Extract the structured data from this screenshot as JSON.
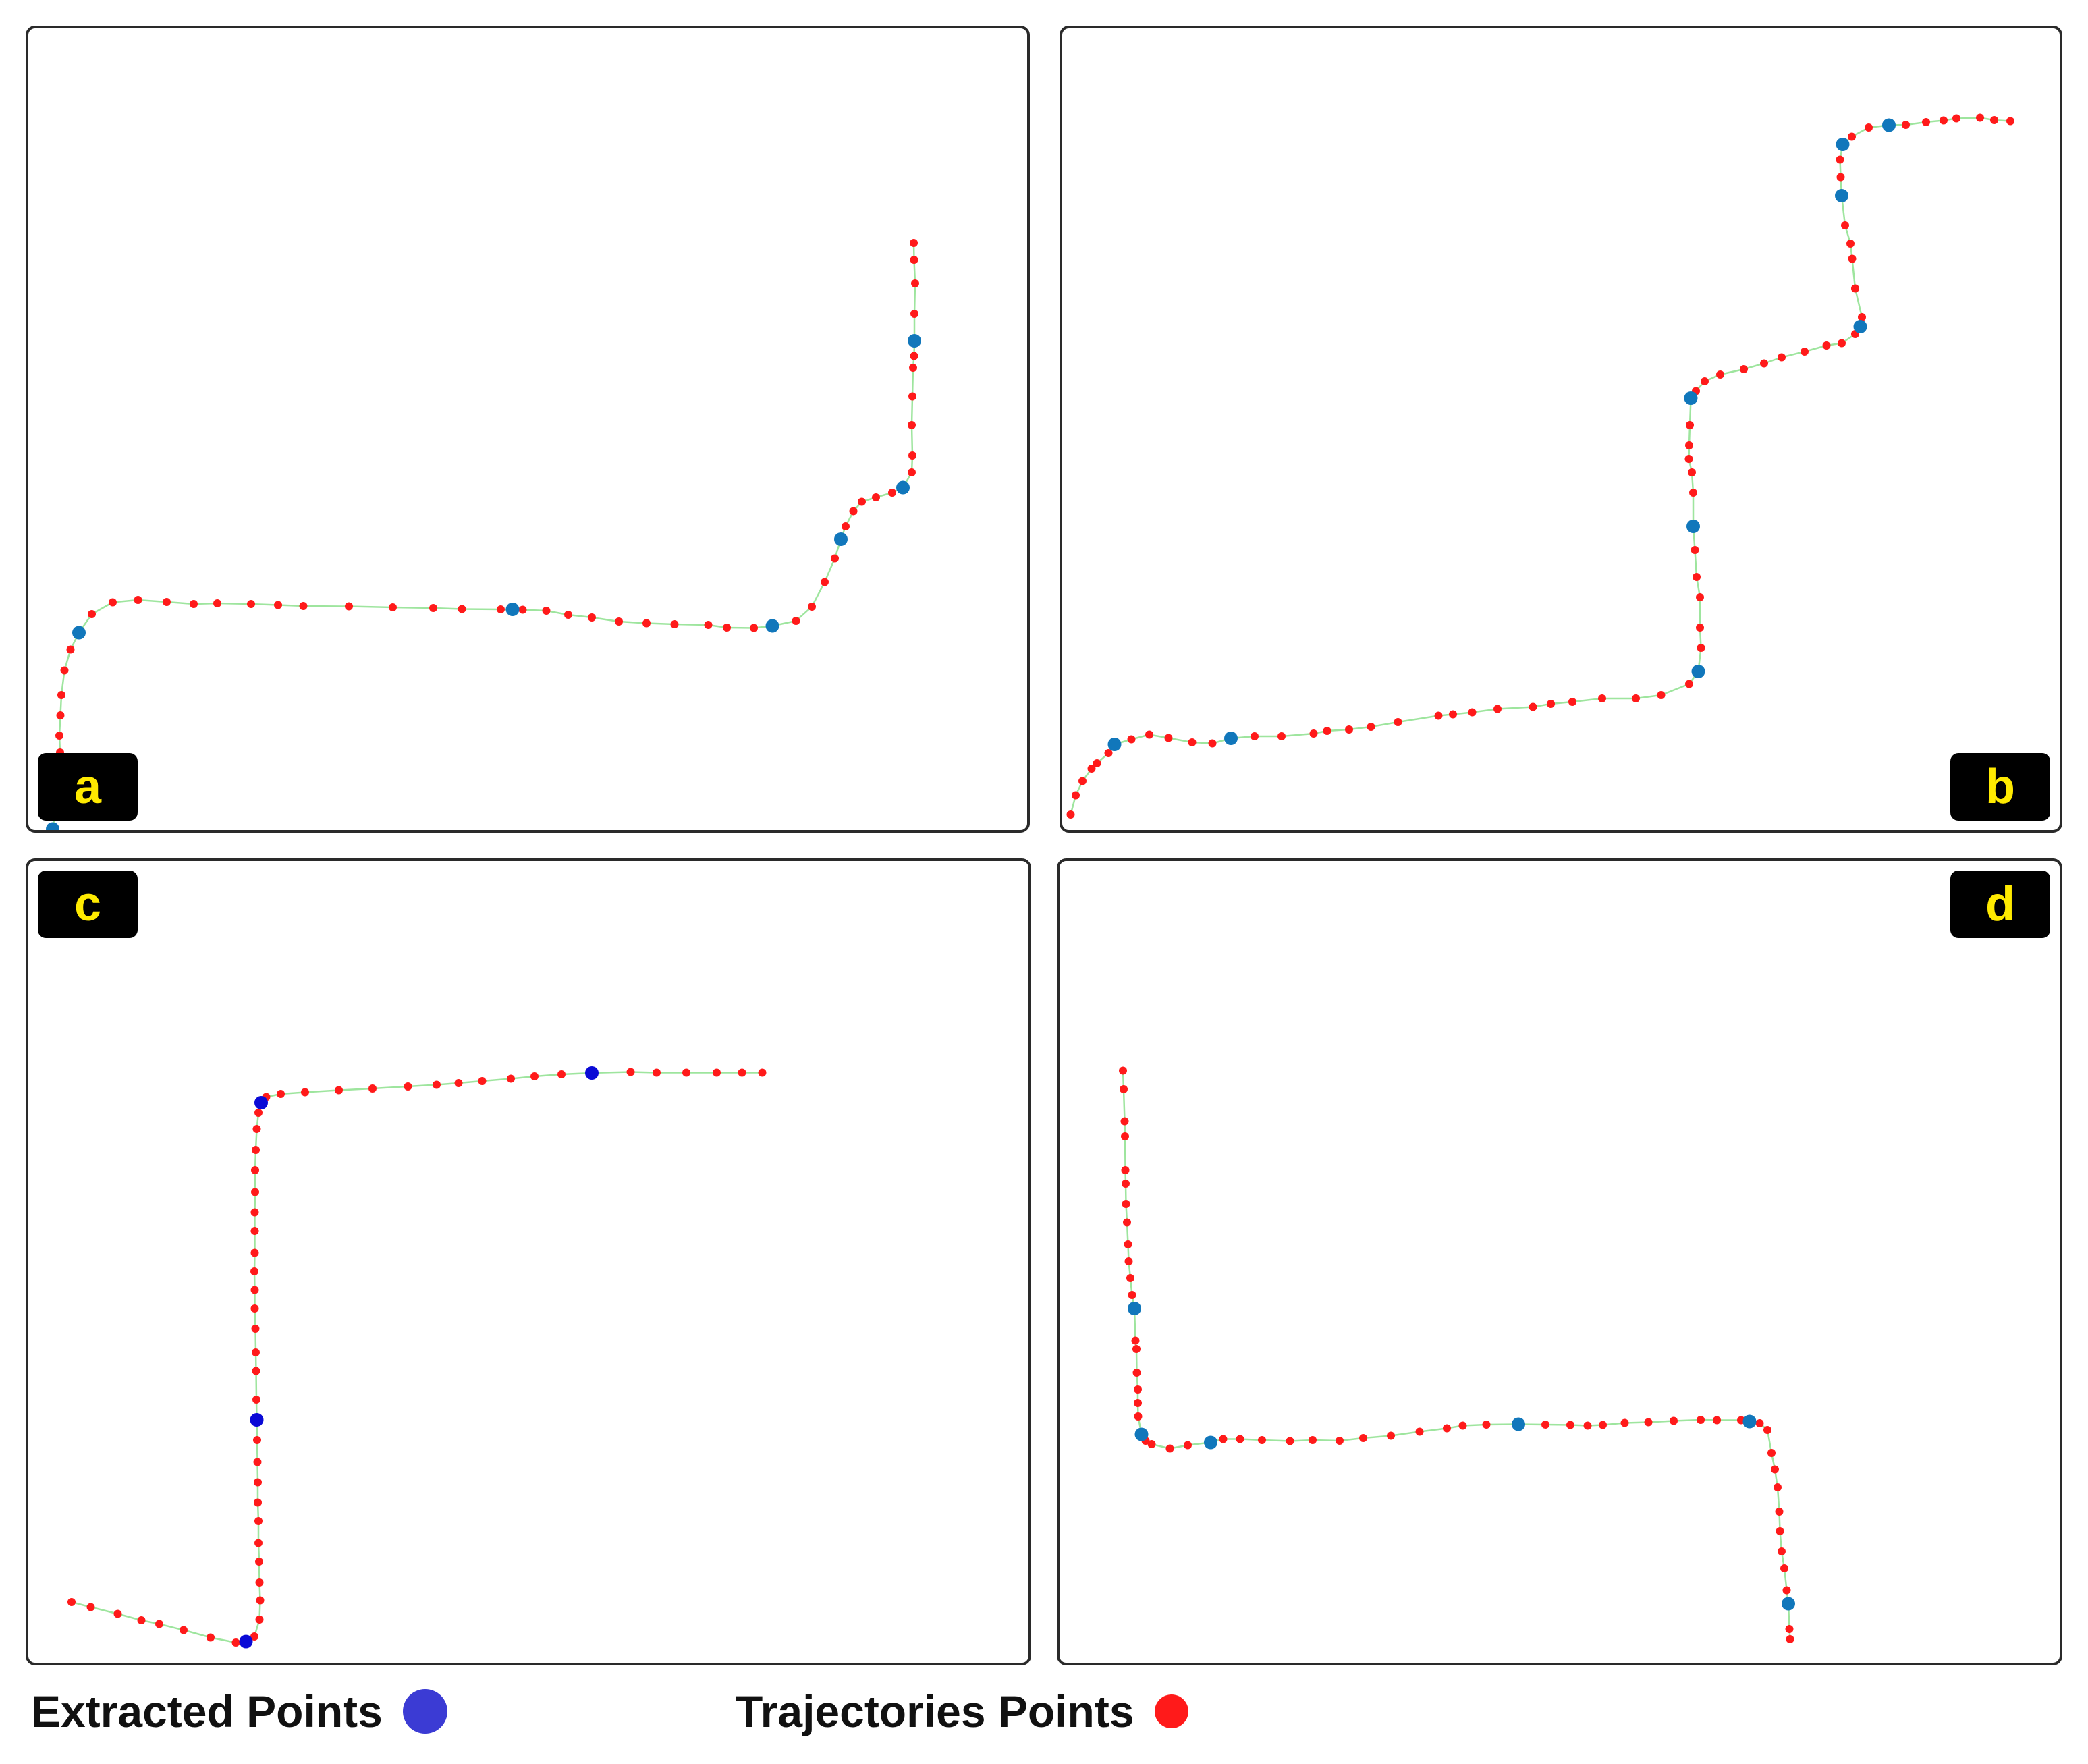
{
  "panels": [
    {
      "label": "a",
      "trajectory_points": [
        [
          0.066,
          -0.006
        ],
        [
          0.072,
          0.003
        ],
        [
          0.08,
          0.052
        ],
        [
          0.082,
          0.1
        ],
        [
          0.086,
          0.165
        ],
        [
          0.094,
          0.23
        ],
        [
          0.092,
          0.28
        ],
        [
          0.095,
          0.34
        ],
        [
          0.098,
          0.4
        ],
        [
          0.107,
          0.473
        ],
        [
          0.125,
          0.535
        ],
        [
          0.15,
          0.585
        ],
        [
          0.188,
          0.64
        ],
        [
          0.25,
          0.675
        ],
        [
          0.325,
          0.682
        ],
        [
          0.41,
          0.676
        ],
        [
          0.49,
          0.67
        ],
        [
          0.56,
          0.672
        ],
        [
          0.66,
          0.67
        ],
        [
          0.74,
          0.667
        ],
        [
          0.815,
          0.664
        ],
        [
          0.95,
          0.663
        ],
        [
          1.08,
          0.66
        ],
        [
          1.2,
          0.658
        ],
        [
          1.285,
          0.655
        ],
        [
          1.4,
          0.654
        ],
        [
          1.465,
          0.653
        ],
        [
          1.535,
          0.65
        ],
        [
          1.6,
          0.638
        ],
        [
          1.67,
          0.63
        ],
        [
          1.75,
          0.618
        ],
        [
          1.832,
          0.613
        ],
        [
          1.915,
          0.61
        ],
        [
          2.015,
          0.608
        ],
        [
          2.07,
          0.6
        ],
        [
          2.15,
          0.599
        ],
        [
          2.205,
          0.605
        ],
        [
          2.275,
          0.62
        ],
        [
          2.322,
          0.662
        ],
        [
          2.36,
          0.735
        ],
        [
          2.39,
          0.805
        ],
        [
          2.408,
          0.862
        ],
        [
          2.422,
          0.9
        ],
        [
          2.445,
          0.945
        ],
        [
          2.47,
          0.973
        ],
        [
          2.512,
          0.986
        ],
        [
          2.56,
          1.0
        ],
        [
          2.592,
          1.015
        ],
        [
          2.618,
          1.06
        ],
        [
          2.62,
          1.11
        ],
        [
          2.618,
          1.2
        ],
        [
          2.62,
          1.285
        ],
        [
          2.622,
          1.37
        ],
        [
          2.625,
          1.405
        ],
        [
          2.626,
          1.45
        ],
        [
          2.626,
          1.53
        ],
        [
          2.628,
          1.62
        ],
        [
          2.625,
          1.69
        ],
        [
          2.624,
          1.74
        ]
      ],
      "extracted_points": [
        [
          0.072,
          0.003
        ],
        [
          0.15,
          0.585
        ],
        [
          1.435,
          0.654
        ],
        [
          2.205,
          0.605
        ],
        [
          2.408,
          0.862
        ],
        [
          2.592,
          1.015
        ],
        [
          2.626,
          1.45
        ]
      ]
    },
    {
      "label": "b",
      "trajectory_points": [
        [
          0.025,
          0.046
        ],
        [
          0.04,
          0.103
        ],
        [
          0.06,
          0.145
        ],
        [
          0.087,
          0.182
        ],
        [
          0.103,
          0.198
        ],
        [
          0.137,
          0.228
        ],
        [
          0.155,
          0.254
        ],
        [
          0.205,
          0.269
        ],
        [
          0.258,
          0.283
        ],
        [
          0.315,
          0.273
        ],
        [
          0.385,
          0.26
        ],
        [
          0.445,
          0.257
        ],
        [
          0.5,
          0.272
        ],
        [
          0.57,
          0.278
        ],
        [
          0.65,
          0.278
        ],
        [
          0.745,
          0.286
        ],
        [
          0.785,
          0.294
        ],
        [
          0.85,
          0.298
        ],
        [
          0.915,
          0.306
        ],
        [
          0.995,
          0.32
        ],
        [
          1.115,
          0.339
        ],
        [
          1.158,
          0.343
        ],
        [
          1.215,
          0.349
        ],
        [
          1.29,
          0.359
        ],
        [
          1.395,
          0.365
        ],
        [
          1.448,
          0.374
        ],
        [
          1.512,
          0.38
        ],
        [
          1.6,
          0.39
        ],
        [
          1.7,
          0.39
        ],
        [
          1.775,
          0.4
        ],
        [
          1.858,
          0.433
        ],
        [
          1.885,
          0.47
        ],
        [
          1.893,
          0.54
        ],
        [
          1.89,
          0.6
        ],
        [
          1.89,
          0.69
        ],
        [
          1.88,
          0.75
        ],
        [
          1.875,
          0.83
        ],
        [
          1.87,
          0.9
        ],
        [
          1.87,
          1.0
        ],
        [
          1.866,
          1.06
        ],
        [
          1.857,
          1.1
        ],
        [
          1.858,
          1.14
        ],
        [
          1.86,
          1.2
        ],
        [
          1.863,
          1.28
        ],
        [
          1.878,
          1.301
        ],
        [
          1.904,
          1.33
        ],
        [
          1.95,
          1.35
        ],
        [
          2.02,
          1.366
        ],
        [
          2.08,
          1.383
        ],
        [
          2.132,
          1.401
        ],
        [
          2.2,
          1.418
        ],
        [
          2.265,
          1.436
        ],
        [
          2.31,
          1.443
        ],
        [
          2.35,
          1.47
        ],
        [
          2.365,
          1.492
        ],
        [
          2.37,
          1.52
        ],
        [
          2.35,
          1.605
        ],
        [
          2.341,
          1.693
        ],
        [
          2.336,
          1.738
        ],
        [
          2.32,
          1.792
        ],
        [
          2.31,
          1.88
        ],
        [
          2.307,
          1.935
        ],
        [
          2.305,
          1.987
        ],
        [
          2.313,
          2.032
        ],
        [
          2.34,
          2.055
        ],
        [
          2.39,
          2.082
        ],
        [
          2.45,
          2.089
        ],
        [
          2.5,
          2.09
        ],
        [
          2.56,
          2.098
        ],
        [
          2.612,
          2.103
        ],
        [
          2.65,
          2.109
        ],
        [
          2.72,
          2.111
        ],
        [
          2.762,
          2.104
        ],
        [
          2.81,
          2.101
        ]
      ],
      "extracted_points": [
        [
          0.155,
          0.254
        ],
        [
          0.5,
          0.272
        ],
        [
          1.885,
          0.47
        ],
        [
          1.87,
          0.9
        ],
        [
          1.863,
          1.28
        ],
        [
          2.365,
          1.492
        ],
        [
          2.31,
          1.88
        ],
        [
          2.313,
          2.032
        ],
        [
          2.45,
          2.089
        ]
      ]
    },
    {
      "label": "c",
      "trajectory_points": [
        [
          0.128,
          0.18
        ],
        [
          0.185,
          0.165
        ],
        [
          0.265,
          0.145
        ],
        [
          0.335,
          0.126
        ],
        [
          0.388,
          0.115
        ],
        [
          0.46,
          0.097
        ],
        [
          0.54,
          0.075
        ],
        [
          0.615,
          0.06
        ],
        [
          0.645,
          0.063
        ],
        [
          0.67,
          0.078
        ],
        [
          0.685,
          0.128
        ],
        [
          0.687,
          0.185
        ],
        [
          0.685,
          0.238
        ],
        [
          0.684,
          0.3
        ],
        [
          0.682,
          0.355
        ],
        [
          0.682,
          0.42
        ],
        [
          0.68,
          0.475
        ],
        [
          0.68,
          0.535
        ],
        [
          0.679,
          0.595
        ],
        [
          0.678,
          0.66
        ],
        [
          0.677,
          0.72
        ],
        [
          0.676,
          0.78
        ],
        [
          0.675,
          0.865
        ],
        [
          0.674,
          0.92
        ],
        [
          0.673,
          0.99
        ],
        [
          0.671,
          1.05
        ],
        [
          0.671,
          1.105
        ],
        [
          0.67,
          1.16
        ],
        [
          0.671,
          1.215
        ],
        [
          0.671,
          1.28
        ],
        [
          0.671,
          1.335
        ],
        [
          0.672,
          1.395
        ],
        [
          0.672,
          1.46
        ],
        [
          0.674,
          1.52
        ],
        [
          0.677,
          1.582
        ],
        [
          0.682,
          1.63
        ],
        [
          0.69,
          1.66
        ],
        [
          0.705,
          1.677
        ],
        [
          0.748,
          1.686
        ],
        [
          0.82,
          1.691
        ],
        [
          0.92,
          1.697
        ],
        [
          1.02,
          1.702
        ],
        [
          1.125,
          1.708
        ],
        [
          1.21,
          1.713
        ],
        [
          1.275,
          1.718
        ],
        [
          1.345,
          1.724
        ],
        [
          1.43,
          1.731
        ],
        [
          1.5,
          1.738
        ],
        [
          1.58,
          1.744
        ],
        [
          1.67,
          1.748
        ],
        [
          1.785,
          1.751
        ],
        [
          1.862,
          1.749
        ],
        [
          1.95,
          1.749
        ],
        [
          2.04,
          1.749
        ],
        [
          2.115,
          1.749
        ],
        [
          2.175,
          1.749
        ]
      ],
      "extracted_points": [
        [
          0.645,
          0.063
        ],
        [
          0.677,
          0.72
        ],
        [
          0.69,
          1.66
        ],
        [
          1.67,
          1.748
        ]
      ]
    },
    {
      "label": "d",
      "trajectory_points": [
        [
          0.188,
          1.755
        ],
        [
          0.19,
          1.7
        ],
        [
          0.193,
          1.605
        ],
        [
          0.194,
          1.56
        ],
        [
          0.195,
          1.46
        ],
        [
          0.196,
          1.42
        ],
        [
          0.197,
          1.36
        ],
        [
          0.2,
          1.305
        ],
        [
          0.203,
          1.24
        ],
        [
          0.205,
          1.19
        ],
        [
          0.21,
          1.14
        ],
        [
          0.215,
          1.09
        ],
        [
          0.222,
          1.05
        ],
        [
          0.225,
          0.955
        ],
        [
          0.228,
          0.93
        ],
        [
          0.229,
          0.86
        ],
        [
          0.232,
          0.81
        ],
        [
          0.232,
          0.77
        ],
        [
          0.233,
          0.73
        ],
        [
          0.243,
          0.677
        ],
        [
          0.255,
          0.658
        ],
        [
          0.273,
          0.648
        ],
        [
          0.327,
          0.635
        ],
        [
          0.38,
          0.645
        ],
        [
          0.448,
          0.653
        ],
        [
          0.485,
          0.663
        ],
        [
          0.535,
          0.663
        ],
        [
          0.6,
          0.66
        ],
        [
          0.683,
          0.657
        ],
        [
          0.75,
          0.66
        ],
        [
          0.83,
          0.658
        ],
        [
          0.9,
          0.666
        ],
        [
          0.982,
          0.673
        ],
        [
          1.067,
          0.685
        ],
        [
          1.148,
          0.695
        ],
        [
          1.195,
          0.703
        ],
        [
          1.265,
          0.706
        ],
        [
          1.36,
          0.707
        ],
        [
          1.44,
          0.706
        ],
        [
          1.514,
          0.705
        ],
        [
          1.565,
          0.703
        ],
        [
          1.61,
          0.705
        ],
        [
          1.675,
          0.711
        ],
        [
          1.745,
          0.713
        ],
        [
          1.82,
          0.717
        ],
        [
          1.9,
          0.72
        ],
        [
          1.948,
          0.719
        ],
        [
          2.02,
          0.719
        ],
        [
          2.045,
          0.715
        ],
        [
          2.075,
          0.71
        ],
        [
          2.098,
          0.69
        ],
        [
          2.11,
          0.622
        ],
        [
          2.12,
          0.573
        ],
        [
          2.128,
          0.52
        ],
        [
          2.133,
          0.448
        ],
        [
          2.135,
          0.39
        ],
        [
          2.14,
          0.33
        ],
        [
          2.148,
          0.28
        ],
        [
          2.155,
          0.215
        ],
        [
          2.16,
          0.175
        ],
        [
          2.163,
          0.1
        ],
        [
          2.165,
          0.07
        ]
      ],
      "extracted_points": [
        [
          0.222,
          1.05
        ],
        [
          0.243,
          0.677
        ],
        [
          0.448,
          0.653
        ],
        [
          1.36,
          0.707
        ],
        [
          2.045,
          0.715
        ],
        [
          2.16,
          0.175
        ]
      ]
    }
  ],
  "legend": {
    "extracted_label": "Extracted Points",
    "trajectory_label": "Trajectories Points"
  },
  "colors": {
    "trajectory_dot": "#ff1a1a",
    "path_line": "#9ee59e",
    "extracted_dot_ab_d": "#1177bb",
    "extracted_dot_c": "#0a0ad6",
    "legend_extracted_dot": "#3b3bd4",
    "legend_trajectory_dot": "#ff1a1a",
    "label_bg": "#000000",
    "label_text": "#ffea00"
  }
}
